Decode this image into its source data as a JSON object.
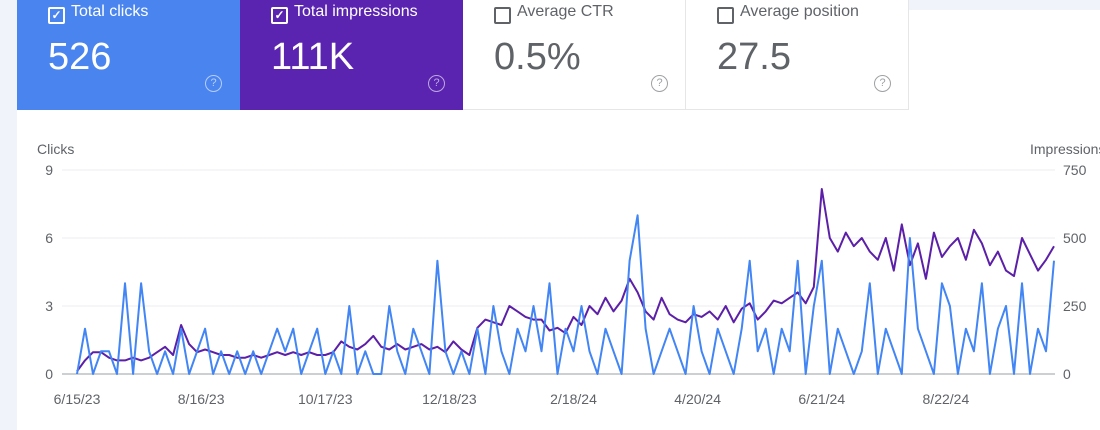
{
  "metrics": [
    {
      "label": "Total clicks",
      "value": "526",
      "checked": true,
      "color": "#4a84ee"
    },
    {
      "label": "Total impressions",
      "value": "111K",
      "checked": true,
      "color": "#5a24b0"
    },
    {
      "label": "Average CTR",
      "value": "0.5%",
      "checked": false
    },
    {
      "label": "Average position",
      "value": "27.5",
      "checked": false
    }
  ],
  "help_icon": "question-circle-icon",
  "chart_data": {
    "type": "line",
    "ylabel_left": "Clicks",
    "ylabel_right": "Impressions",
    "yticks_left": [
      "0",
      "3",
      "6",
      "9"
    ],
    "yticks_right": [
      "0",
      "250",
      "500",
      "750"
    ],
    "ylim_left": [
      0,
      9
    ],
    "ylim_right": [
      0,
      750
    ],
    "xticks": [
      "6/15/23",
      "8/16/23",
      "10/17/23",
      "12/18/23",
      "2/18/24",
      "4/20/24",
      "6/21/24",
      "8/22/24"
    ],
    "xlim": [
      "6/15/23",
      "10/15/24"
    ],
    "grid": true,
    "series": [
      {
        "name": "Clicks",
        "axis": "left",
        "color": "#4285f4",
        "values": [
          0,
          2,
          0,
          1,
          1,
          0,
          4,
          0,
          4,
          1,
          0,
          1,
          0,
          2,
          0,
          1,
          2,
          0,
          1,
          0,
          1,
          0,
          1,
          0,
          1,
          2,
          1,
          2,
          0,
          1,
          2,
          0,
          1,
          0,
          3,
          0,
          1,
          0,
          0,
          3,
          1,
          0,
          2,
          1,
          0,
          5,
          1,
          0,
          1,
          0,
          2,
          0,
          3,
          1,
          0,
          2,
          1,
          3,
          1,
          4,
          0,
          2,
          1,
          3,
          1,
          0,
          2,
          1,
          0,
          5,
          7,
          2,
          0,
          1,
          2,
          1,
          0,
          3,
          1,
          0,
          2,
          1,
          0,
          2,
          5,
          1,
          2,
          0,
          2,
          1,
          5,
          0,
          3,
          5,
          0,
          2,
          1,
          0,
          1,
          4,
          0,
          2,
          1,
          0,
          6,
          2,
          1,
          0,
          4,
          3,
          0,
          2,
          1,
          4,
          0,
          2,
          3,
          0,
          4,
          0,
          2,
          1,
          5
        ]
      },
      {
        "name": "Impressions",
        "axis": "right",
        "color": "#5c1fa8",
        "values": [
          10,
          50,
          80,
          80,
          60,
          50,
          50,
          60,
          50,
          60,
          80,
          100,
          70,
          180,
          110,
          80,
          90,
          80,
          70,
          70,
          60,
          60,
          70,
          60,
          70,
          80,
          70,
          80,
          70,
          80,
          70,
          70,
          80,
          120,
          100,
          90,
          110,
          140,
          100,
          90,
          110,
          90,
          100,
          110,
          90,
          100,
          80,
          120,
          90,
          70,
          170,
          200,
          190,
          180,
          250,
          230,
          210,
          200,
          200,
          160,
          170,
          150,
          210,
          180,
          250,
          220,
          280,
          230,
          270,
          350,
          300,
          230,
          200,
          280,
          220,
          200,
          190,
          220,
          210,
          230,
          200,
          250,
          190,
          240,
          260,
          200,
          230,
          270,
          260,
          280,
          300,
          260,
          320,
          680,
          500,
          450,
          520,
          470,
          500,
          450,
          420,
          500,
          380,
          550,
          400,
          480,
          350,
          520,
          430,
          470,
          500,
          420,
          530,
          480,
          400,
          450,
          380,
          360,
          500,
          440,
          380,
          420,
          470
        ]
      }
    ]
  }
}
